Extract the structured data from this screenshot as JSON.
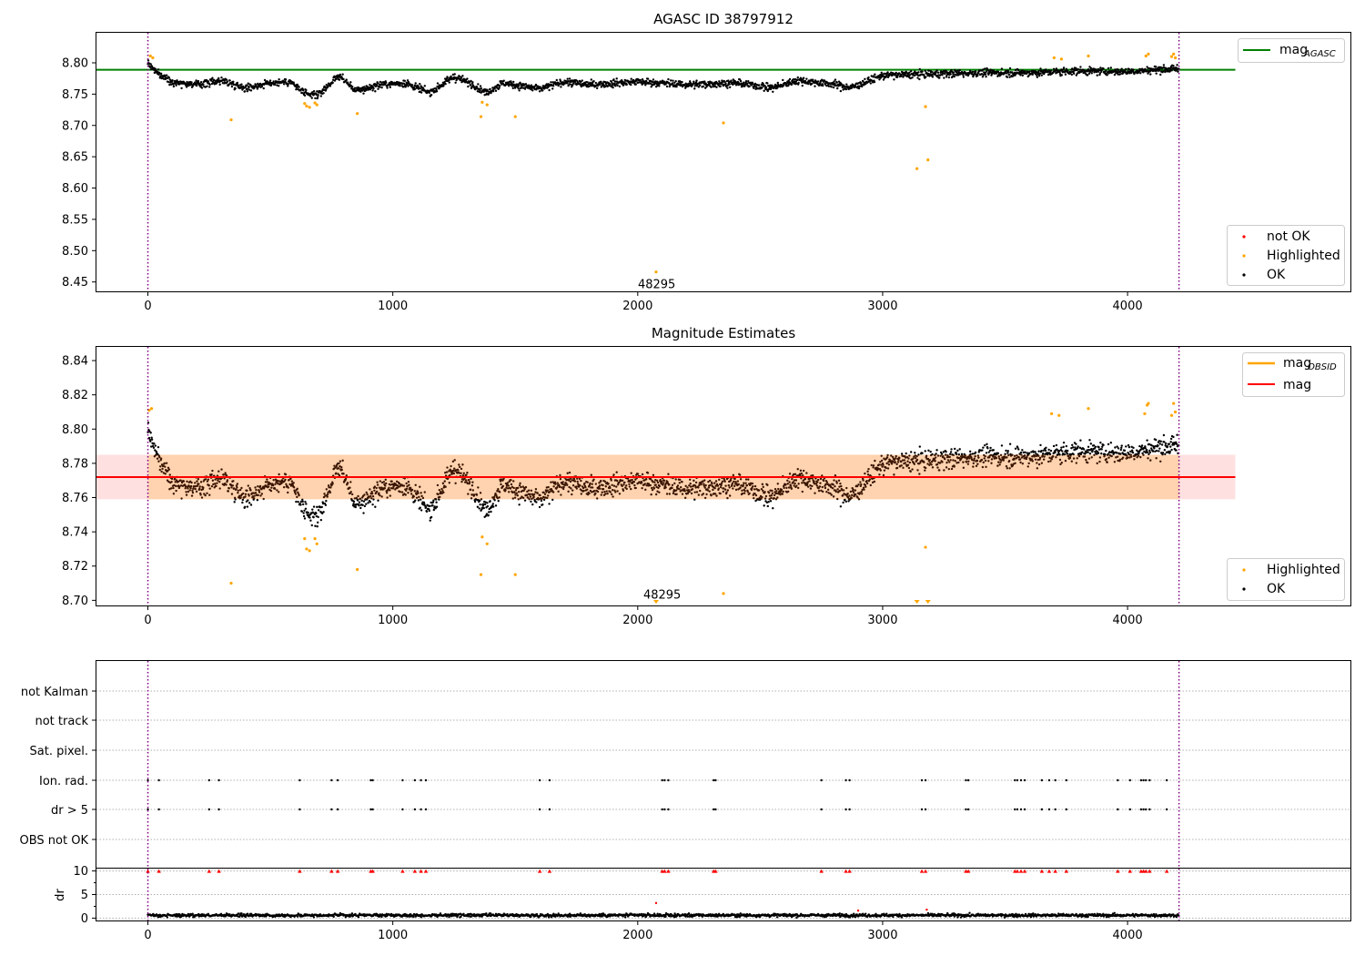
{
  "chart_data": [
    {
      "type": "scatter",
      "title": "AGASC ID 38797912",
      "xlabel": "",
      "ylabel": "",
      "xlim": [
        -210,
        4910
      ],
      "ylim": [
        8.435,
        8.848
      ],
      "xticks": [
        0,
        1000,
        2000,
        3000,
        4000
      ],
      "yticks": [
        8.45,
        8.5,
        8.55,
        8.6,
        8.65,
        8.7,
        8.75,
        8.8
      ],
      "ytick_labels": [
        "8.45",
        "8.50",
        "8.55",
        "8.60",
        "8.65",
        "8.70",
        "8.75",
        "8.80"
      ],
      "vlines": [
        0,
        4210
      ],
      "hline": {
        "name": "mag_AGASC",
        "value": 8.789,
        "x_range": [
          -210,
          4440
        ],
        "color": "#008000"
      },
      "annotation": {
        "text": "48295",
        "x": 2070,
        "y": 8.446
      },
      "legend_top": {
        "placement": "upper right",
        "label_main": "mag",
        "label_sub": "AGASC"
      },
      "legend_bottom": {
        "placement": "lower right",
        "items": [
          {
            "label": "not OK",
            "color": "#ff0000"
          },
          {
            "label": "Highlighted",
            "color": "#ffa500"
          },
          {
            "label": "OK",
            "color": "#000000"
          }
        ]
      },
      "highlighted_points": [
        [
          10,
          8.811
        ],
        [
          20,
          8.808
        ],
        [
          340,
          8.709
        ],
        [
          640,
          8.735
        ],
        [
          648,
          8.731
        ],
        [
          660,
          8.729
        ],
        [
          682,
          8.736
        ],
        [
          690,
          8.733
        ],
        [
          855,
          8.719
        ],
        [
          1360,
          8.714
        ],
        [
          1365,
          8.737
        ],
        [
          1385,
          8.733
        ],
        [
          1500,
          8.714
        ],
        [
          2075,
          8.466
        ],
        [
          2350,
          8.704
        ],
        [
          3140,
          8.631
        ],
        [
          3175,
          8.73
        ],
        [
          3185,
          8.645
        ],
        [
          3700,
          8.808
        ],
        [
          3730,
          8.806
        ],
        [
          3840,
          8.811
        ],
        [
          4075,
          8.811
        ],
        [
          4085,
          8.814
        ],
        [
          4180,
          8.81
        ],
        [
          4188,
          8.814
        ],
        [
          4195,
          8.808
        ]
      ],
      "ok_trend": [
        [
          0,
          8.8
        ],
        [
          40,
          8.783
        ],
        [
          100,
          8.77
        ],
        [
          200,
          8.765
        ],
        [
          300,
          8.772
        ],
        [
          400,
          8.76
        ],
        [
          500,
          8.768
        ],
        [
          580,
          8.77
        ],
        [
          650,
          8.748
        ],
        [
          700,
          8.75
        ],
        [
          780,
          8.78
        ],
        [
          850,
          8.755
        ],
        [
          950,
          8.765
        ],
        [
          1050,
          8.768
        ],
        [
          1150,
          8.752
        ],
        [
          1250,
          8.778
        ],
        [
          1330,
          8.765
        ],
        [
          1380,
          8.752
        ],
        [
          1450,
          8.768
        ],
        [
          1600,
          8.758
        ],
        [
          1700,
          8.77
        ],
        [
          1800,
          8.765
        ],
        [
          2000,
          8.77
        ],
        [
          2200,
          8.765
        ],
        [
          2400,
          8.768
        ],
        [
          2550,
          8.76
        ],
        [
          2650,
          8.772
        ],
        [
          2800,
          8.766
        ],
        [
          2870,
          8.76
        ],
        [
          3000,
          8.78
        ],
        [
          3200,
          8.782
        ],
        [
          3400,
          8.784
        ],
        [
          3600,
          8.784
        ],
        [
          3800,
          8.787
        ],
        [
          4000,
          8.786
        ],
        [
          4150,
          8.79
        ],
        [
          4210,
          8.79
        ]
      ],
      "ok_noise": 0.0075
    },
    {
      "type": "scatter",
      "title": "Magnitude Estimates",
      "xlabel": "",
      "ylabel": "",
      "xlim": [
        -210,
        4910
      ],
      "ylim": [
        8.697,
        8.848
      ],
      "xticks": [
        0,
        1000,
        2000,
        3000,
        4000
      ],
      "yticks": [
        8.7,
        8.72,
        8.74,
        8.76,
        8.78,
        8.8,
        8.82,
        8.84
      ],
      "ytick_labels": [
        "8.70",
        "8.72",
        "8.74",
        "8.76",
        "8.78",
        "8.80",
        "8.82",
        "8.84"
      ],
      "vlines": [
        0,
        4210
      ],
      "mag_line": {
        "name": "mag",
        "value": 8.772,
        "x_range": [
          -210,
          4440
        ],
        "color": "#ff0000"
      },
      "mag_band": {
        "low": 8.759,
        "high": 8.785,
        "x_range": [
          -210,
          4440
        ]
      },
      "mag_obsid_band": {
        "low": 8.759,
        "high": 8.785,
        "x_range": [
          0,
          4210
        ],
        "color": "#ffa500"
      },
      "annotation": {
        "text": "48295",
        "x": 2070,
        "y": 8.703
      },
      "legend_top": {
        "placement": "upper right",
        "items": [
          {
            "label_main": "mag",
            "label_sub": "OBSID",
            "color": "#ffa500"
          },
          {
            "label_main": "mag",
            "label_sub": "",
            "color": "#ff0000"
          }
        ]
      },
      "legend_bottom": {
        "placement": "lower right",
        "items": [
          {
            "label": "Highlighted",
            "color": "#ffa500"
          },
          {
            "label": "OK",
            "color": "#000000"
          }
        ]
      },
      "highlighted_points": [
        [
          5,
          8.811
        ],
        [
          15,
          8.812
        ],
        [
          340,
          8.71
        ],
        [
          640,
          8.736
        ],
        [
          648,
          8.73
        ],
        [
          660,
          8.729
        ],
        [
          682,
          8.736
        ],
        [
          690,
          8.733
        ],
        [
          855,
          8.718
        ],
        [
          1360,
          8.715
        ],
        [
          1365,
          8.737
        ],
        [
          1385,
          8.733
        ],
        [
          1500,
          8.715
        ],
        [
          2350,
          8.704
        ],
        [
          3175,
          8.731
        ],
        [
          3690,
          8.809
        ],
        [
          3720,
          8.808
        ],
        [
          3840,
          8.812
        ],
        [
          4070,
          8.809
        ],
        [
          4080,
          8.814
        ],
        [
          4085,
          8.815
        ],
        [
          4180,
          8.808
        ],
        [
          4188,
          8.815
        ],
        [
          4195,
          8.81
        ]
      ],
      "offscale_low_markers": [
        2075,
        3140,
        3185
      ],
      "ok_trend": [
        [
          0,
          8.8
        ],
        [
          40,
          8.783
        ],
        [
          100,
          8.77
        ],
        [
          200,
          8.765
        ],
        [
          300,
          8.772
        ],
        [
          400,
          8.76
        ],
        [
          500,
          8.768
        ],
        [
          580,
          8.77
        ],
        [
          650,
          8.748
        ],
        [
          700,
          8.75
        ],
        [
          780,
          8.78
        ],
        [
          850,
          8.755
        ],
        [
          950,
          8.765
        ],
        [
          1050,
          8.768
        ],
        [
          1150,
          8.752
        ],
        [
          1250,
          8.778
        ],
        [
          1330,
          8.765
        ],
        [
          1380,
          8.752
        ],
        [
          1450,
          8.768
        ],
        [
          1600,
          8.758
        ],
        [
          1700,
          8.77
        ],
        [
          1800,
          8.765
        ],
        [
          2000,
          8.77
        ],
        [
          2200,
          8.765
        ],
        [
          2400,
          8.768
        ],
        [
          2550,
          8.76
        ],
        [
          2650,
          8.772
        ],
        [
          2800,
          8.766
        ],
        [
          2870,
          8.76
        ],
        [
          3000,
          8.78
        ],
        [
          3200,
          8.782
        ],
        [
          3400,
          8.784
        ],
        [
          3600,
          8.784
        ],
        [
          3800,
          8.787
        ],
        [
          4000,
          8.786
        ],
        [
          4150,
          8.79
        ],
        [
          4210,
          8.79
        ]
      ],
      "ok_noise": 0.0075
    },
    {
      "type": "scatter",
      "title": "",
      "xlabel": "",
      "ylabel": "",
      "xlim": [
        -210,
        4910
      ],
      "categories": [
        "not Kalman",
        "not track",
        "Sat. pixel.",
        "Ion. rad.",
        "dr > 5",
        "OBS not OK"
      ],
      "flagged_x": [
        0,
        45,
        250,
        290,
        620,
        750,
        775,
        910,
        918,
        1040,
        1090,
        1115,
        1135,
        1600,
        1640,
        2100,
        2110,
        2125,
        2310,
        2318,
        2750,
        2850,
        2865,
        3160,
        3175,
        3340,
        3350,
        3540,
        3550,
        3565,
        3580,
        3650,
        3680,
        3705,
        3750,
        3960,
        4010,
        4055,
        4065,
        4075,
        4090,
        4160
      ],
      "flag_rows": [
        "Ion. rad.",
        "dr > 5"
      ],
      "vlines": [
        0,
        4210
      ]
    },
    {
      "type": "scatter",
      "title": "",
      "xlabel": "",
      "ylabel": "dr",
      "xlim": [
        -210,
        4910
      ],
      "ylim": [
        -0.5,
        10.5
      ],
      "xticks": [
        0,
        1000,
        2000,
        3000,
        4000
      ],
      "yticks": [
        0,
        5,
        10
      ],
      "ytick_labels": [
        "0",
        "5",
        "10"
      ],
      "xtick_labels": [
        "0",
        "1000",
        "2000",
        "3000",
        "4000"
      ],
      "dr_level": 0.6,
      "dr_noise": 0.45,
      "outliers": [
        [
          2075,
          3.2
        ],
        [
          3180,
          1.8
        ],
        [
          2900,
          1.6
        ]
      ],
      "clipped_markers_value": 10,
      "vlines": [
        0,
        4210
      ]
    }
  ]
}
